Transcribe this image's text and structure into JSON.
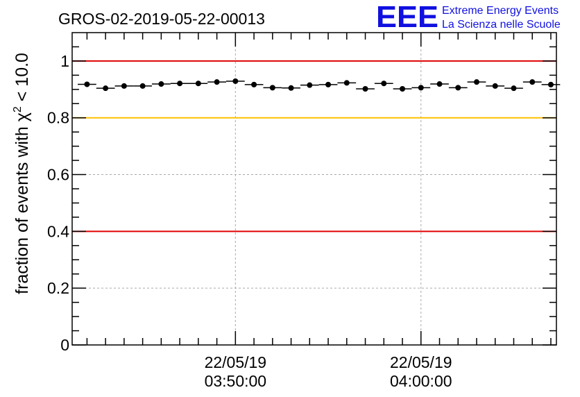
{
  "title": "GROS-02-2019-05-22-00013",
  "logo": {
    "letters": "EEE",
    "line1": "Extreme Energy Events",
    "line2": "La Scienza nelle Scuole",
    "color": "#1010e0"
  },
  "chart_data": {
    "type": "scatter",
    "title": "GROS-02-2019-05-22-00013",
    "ylabel": "fraction of events with χ² < 10.0",
    "ylabel_parts": {
      "prefix": "fraction of events with ",
      "chi": "χ",
      "sup": "2",
      "suffix": " < 10.0"
    },
    "xlabel": "",
    "x_range_min": [
      -0.8,
      25.3
    ],
    "ylim": [
      0,
      1.1
    ],
    "y_ticks": [
      0,
      0.2,
      0.4,
      0.6,
      0.8,
      1
    ],
    "y_tick_labels": [
      "0",
      "0.2",
      "0.4",
      "0.6",
      "0.8",
      "1"
    ],
    "x_major_ticks": [
      {
        "x": 8,
        "label_date": "22/05/19",
        "label_time": "03:50:00"
      },
      {
        "x": 18,
        "label_date": "22/05/19",
        "label_time": "04:00:00"
      }
    ],
    "x_minor_step": 1,
    "grid": true,
    "x_err": 0.5,
    "reference_lines": [
      {
        "y": 1.0,
        "color": "#e00000"
      },
      {
        "y": 0.8,
        "color": "#ffc000"
      },
      {
        "y": 0.4,
        "color": "#e00000"
      }
    ],
    "series": [
      {
        "x": [
          0,
          1,
          2,
          3,
          4,
          5,
          6,
          7,
          8,
          9,
          10,
          11,
          12,
          13,
          14,
          15,
          16,
          17,
          18,
          19,
          20,
          21,
          22,
          23,
          24,
          25
        ],
        "y": [
          0.918,
          0.904,
          0.912,
          0.912,
          0.919,
          0.921,
          0.921,
          0.926,
          0.929,
          0.917,
          0.906,
          0.905,
          0.915,
          0.917,
          0.923,
          0.902,
          0.921,
          0.902,
          0.906,
          0.919,
          0.906,
          0.926,
          0.912,
          0.904,
          0.926,
          0.917
        ]
      }
    ]
  }
}
